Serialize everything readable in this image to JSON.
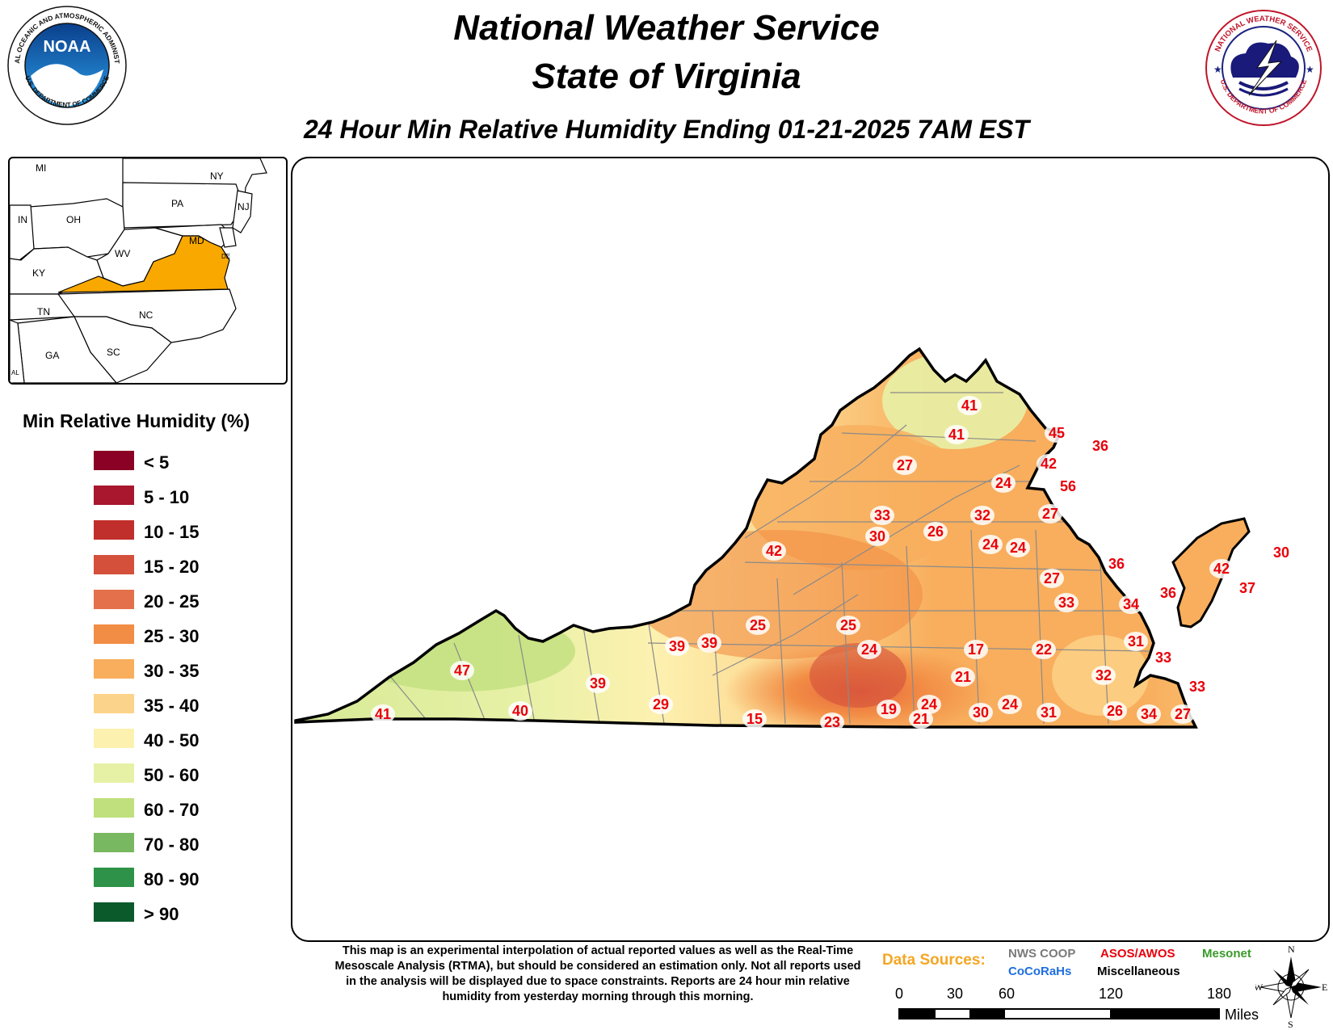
{
  "header": {
    "title_line1": "National Weather Service",
    "title_line2": "State of Virginia",
    "subtitle": "24 Hour Min Relative Humidity Ending 01-21-2025 7AM EST"
  },
  "logos": {
    "noaa_ring_text": "NATIONAL OCEANIC AND ATMOSPHERIC ADMINISTRATION",
    "noaa_bottom_text": "U.S. DEPARTMENT OF COMMERCE",
    "noaa_center": "NOAA",
    "nws_ring_text": "NATIONAL WEATHER SERVICE",
    "nws_bottom_text": "U.S. DEPARTMENT OF COMMERCE"
  },
  "inset_map": {
    "highlight_color": "#f9a800",
    "state_labels": [
      "MI",
      "NY",
      "PA",
      "NJ",
      "IN",
      "OH",
      "MD",
      "DE",
      "WV",
      "KY",
      "TN",
      "NC",
      "GA",
      "SC",
      "AL"
    ]
  },
  "legend": {
    "title": "Min Relative Humidity (%)",
    "items": [
      {
        "label": "< 5",
        "color": "#8b0025"
      },
      {
        "label": "5 - 10",
        "color": "#a8172d"
      },
      {
        "label": "10 - 15",
        "color": "#c12f2c"
      },
      {
        "label": "15 - 20",
        "color": "#d4503a"
      },
      {
        "label": "20 - 25",
        "color": "#e3704a"
      },
      {
        "label": "25 - 30",
        "color": "#f28d45"
      },
      {
        "label": "30 - 35",
        "color": "#f8ae5d"
      },
      {
        "label": "35 - 40",
        "color": "#fcd38a"
      },
      {
        "label": "40 - 50",
        "color": "#fdf1b0"
      },
      {
        "label": "50 - 60",
        "color": "#e7f1a6"
      },
      {
        "label": "60 - 70",
        "color": "#bfe07c"
      },
      {
        "label": "70 - 80",
        "color": "#78b860"
      },
      {
        "label": "80 - 90",
        "color": "#2e9348"
      },
      {
        "label": "> 90",
        "color": "#0b5a2c"
      }
    ]
  },
  "observations": [
    "41",
    "41",
    "45",
    "36",
    "42",
    "27",
    "24",
    "56",
    "33",
    "32",
    "27",
    "26",
    "30",
    "24",
    "24",
    "42",
    "36",
    "27",
    "42",
    "30",
    "37",
    "36",
    "33",
    "34",
    "25",
    "25",
    "39",
    "39",
    "47",
    "24",
    "17",
    "22",
    "31",
    "33",
    "39",
    "21",
    "32",
    "33",
    "29",
    "24",
    "24",
    "19",
    "30",
    "31",
    "26",
    "34",
    "27",
    "40",
    "41",
    "15",
    "23",
    "21"
  ],
  "footer": {
    "disclaimer": "This map is an experimental interpolation of actual reported values as well as the Real-Time Mesoscale Analysis (RTMA), but should be considered an estimation only. Not all reports used in the analysis will be displayed due to space constraints. Reports are 24 hour min relative humidity from yesterday morning through this morning.",
    "data_sources_label": "Data Sources:",
    "sources": [
      {
        "label": "NWS COOP",
        "color": "#7a7a7a"
      },
      {
        "label": "ASOS/AWOS",
        "color": "#e8000b"
      },
      {
        "label": "Mesonet",
        "color": "#3a9a2a"
      },
      {
        "label": "CoCoRaHs",
        "color": "#1f6fe0"
      },
      {
        "label": "Miscellaneous",
        "color": "#000000"
      }
    ],
    "scale_ticks": [
      "0",
      "30",
      "60",
      "120",
      "180"
    ],
    "scale_unit": "Miles",
    "compass": {
      "n": "N",
      "s": "S",
      "e": "E",
      "w": "W"
    }
  }
}
